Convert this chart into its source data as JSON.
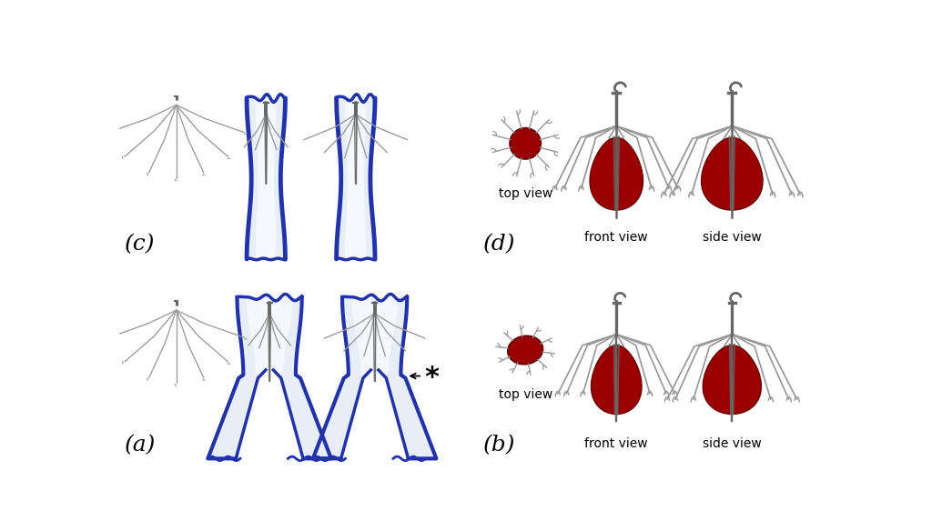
{
  "bg_color": "#ffffff",
  "label_a": "(a)",
  "label_b": "(b)",
  "label_c": "(c)",
  "label_d": "(d)",
  "label_fontsize": 18,
  "top_view": "top view",
  "front_view": "front view",
  "side_view": "side view",
  "ann_fontsize": 10,
  "wire_color": "#999999",
  "wire_color_dark": "#666666",
  "vessel_fill_light": "#e8eef8",
  "vessel_fill_blue": "#b0c4de",
  "vessel_edge": "#2233aa",
  "thrombus_color": "#9b0000",
  "thrombus_edge": "#6b0000"
}
